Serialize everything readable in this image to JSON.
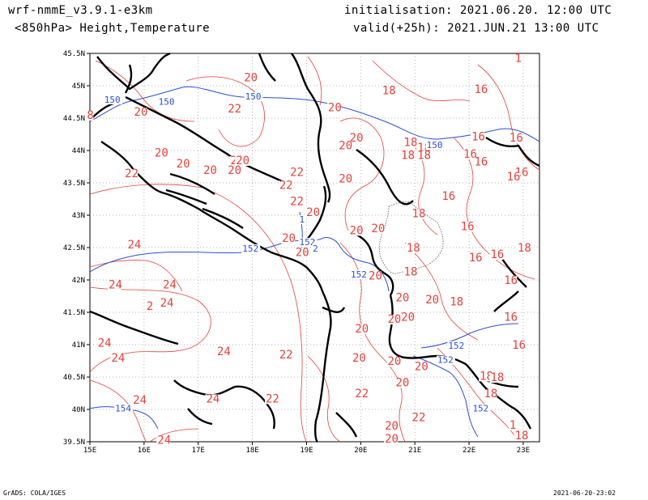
{
  "header": {
    "model": "wrf-nmmE_v3.9.1-e3km",
    "level_fields": "<850hPa> Height,Temperature",
    "init": "initialisation: 2021.06.20. 12:00 UTC",
    "valid": "valid(+25h): 2021.JUN.21 13:00 UTC"
  },
  "footer": {
    "credit": "GrADS: COLA/IGES",
    "timestamp": "2021-06-20-23:02"
  },
  "map": {
    "lon_labels": [
      "15E",
      "16E",
      "17E",
      "18E",
      "19E",
      "20E",
      "21E",
      "22E",
      "23E"
    ],
    "lat_labels": [
      "39.5N",
      "40N",
      "40.5N",
      "41N",
      "41.5N",
      "42N",
      "42.5N",
      "43N",
      "43.5N",
      "44N",
      "44.5N",
      "45N",
      "45.5N"
    ],
    "colors": {
      "temperature": "#e8403a",
      "height": "#2a4fd6",
      "coast": "#000000",
      "grid": "#9a9a9a"
    },
    "temp_labels": [
      {
        "t": "20",
        "lon": 17.95,
        "lat": 45.08
      },
      {
        "t": "18",
        "lon": 20.5,
        "lat": 44.88
      },
      {
        "t": "16",
        "lon": 22.2,
        "lat": 44.9
      },
      {
        "t": "1",
        "lon": 22.95,
        "lat": 45.38
      },
      {
        "t": "8",
        "lon": 15.05,
        "lat": 44.5
      },
      {
        "t": "20",
        "lon": 15.92,
        "lat": 44.55
      },
      {
        "t": "22",
        "lon": 17.65,
        "lat": 44.6
      },
      {
        "t": "20",
        "lon": 19.5,
        "lat": 44.62
      },
      {
        "t": "20",
        "lon": 19.9,
        "lat": 44.15
      },
      {
        "t": "20",
        "lon": 19.7,
        "lat": 44.03
      },
      {
        "t": "18",
        "lon": 20.9,
        "lat": 44.08
      },
      {
        "t": "18",
        "lon": 21.15,
        "lat": 44.0
      },
      {
        "t": "18",
        "lon": 20.85,
        "lat": 43.88
      },
      {
        "t": "18",
        "lon": 21.15,
        "lat": 43.88
      },
      {
        "t": "16",
        "lon": 22.15,
        "lat": 44.17
      },
      {
        "t": "16",
        "lon": 22.85,
        "lat": 44.15
      },
      {
        "t": "16",
        "lon": 22.0,
        "lat": 43.9
      },
      {
        "t": "16",
        "lon": 22.2,
        "lat": 43.78
      },
      {
        "t": "16",
        "lon": 22.95,
        "lat": 43.62
      },
      {
        "t": "16",
        "lon": 22.8,
        "lat": 43.55
      },
      {
        "t": "20",
        "lon": 16.3,
        "lat": 43.92
      },
      {
        "t": "20",
        "lon": 16.7,
        "lat": 43.75
      },
      {
        "t": "20",
        "lon": 17.2,
        "lat": 43.65
      },
      {
        "t": "22",
        "lon": 17.7,
        "lat": 43.8
      },
      {
        "t": "20",
        "lon": 17.8,
        "lat": 43.8
      },
      {
        "t": "20",
        "lon": 17.65,
        "lat": 43.65
      },
      {
        "t": "22",
        "lon": 15.75,
        "lat": 43.6
      },
      {
        "t": "22",
        "lon": 18.8,
        "lat": 43.62
      },
      {
        "t": "22",
        "lon": 18.6,
        "lat": 43.42
      },
      {
        "t": "20",
        "lon": 19.7,
        "lat": 43.52
      },
      {
        "t": "16",
        "lon": 21.6,
        "lat": 43.25
      },
      {
        "t": "22",
        "lon": 18.8,
        "lat": 43.17
      },
      {
        "t": "20",
        "lon": 19.1,
        "lat": 43.0
      },
      {
        "t": "18",
        "lon": 21.05,
        "lat": 42.98
      },
      {
        "t": "16",
        "lon": 21.95,
        "lat": 42.78
      },
      {
        "t": "20",
        "lon": 19.9,
        "lat": 42.72
      },
      {
        "t": "20",
        "lon": 20.3,
        "lat": 42.75
      },
      {
        "t": "20",
        "lon": 18.65,
        "lat": 42.6
      },
      {
        "t": "20",
        "lon": 18.9,
        "lat": 42.38
      },
      {
        "t": "18",
        "lon": 20.95,
        "lat": 42.45
      },
      {
        "t": "16",
        "lon": 22.1,
        "lat": 42.3
      },
      {
        "t": "16",
        "lon": 22.5,
        "lat": 42.35
      },
      {
        "t": "18",
        "lon": 23.0,
        "lat": 42.45
      },
      {
        "t": "20",
        "lon": 20.25,
        "lat": 42.02
      },
      {
        "t": "18",
        "lon": 20.9,
        "lat": 42.08
      },
      {
        "t": "16",
        "lon": 22.75,
        "lat": 41.95
      },
      {
        "t": "20",
        "lon": 20.75,
        "lat": 41.68
      },
      {
        "t": "20",
        "lon": 21.3,
        "lat": 41.65
      },
      {
        "t": "18",
        "lon": 21.75,
        "lat": 41.62
      },
      {
        "t": "20",
        "lon": 20.6,
        "lat": 41.35
      },
      {
        "t": "20",
        "lon": 20.85,
        "lat": 41.38
      },
      {
        "t": "20",
        "lon": 20.0,
        "lat": 41.2
      },
      {
        "t": "16",
        "lon": 22.75,
        "lat": 41.38
      },
      {
        "t": "16",
        "lon": 22.9,
        "lat": 40.95
      },
      {
        "t": "20",
        "lon": 19.95,
        "lat": 40.75
      },
      {
        "t": "20",
        "lon": 20.6,
        "lat": 40.7
      },
      {
        "t": "20",
        "lon": 21.1,
        "lat": 40.62
      },
      {
        "t": "18",
        "lon": 22.3,
        "lat": 40.47
      },
      {
        "t": "18",
        "lon": 22.5,
        "lat": 40.45
      },
      {
        "t": "20",
        "lon": 20.75,
        "lat": 40.37
      },
      {
        "t": "18",
        "lon": 22.38,
        "lat": 40.2
      },
      {
        "t": "22",
        "lon": 20.0,
        "lat": 40.2
      },
      {
        "t": "22",
        "lon": 21.05,
        "lat": 39.83
      },
      {
        "t": "20",
        "lon": 20.55,
        "lat": 39.7
      },
      {
        "t": "20",
        "lon": 20.55,
        "lat": 39.5
      },
      {
        "t": "1",
        "lon": 22.85,
        "lat": 39.71
      },
      {
        "t": "18",
        "lon": 22.95,
        "lat": 39.55
      },
      {
        "t": "24",
        "lon": 15.8,
        "lat": 42.5
      },
      {
        "t": "24",
        "lon": 15.45,
        "lat": 41.88
      },
      {
        "t": "24",
        "lon": 16.45,
        "lat": 41.88
      },
      {
        "t": "2",
        "lon": 16.15,
        "lat": 41.55
      },
      {
        "t": "24",
        "lon": 16.4,
        "lat": 41.6
      },
      {
        "t": "24",
        "lon": 15.25,
        "lat": 40.98
      },
      {
        "t": "24",
        "lon": 15.5,
        "lat": 40.75
      },
      {
        "t": "24",
        "lon": 17.45,
        "lat": 40.85
      },
      {
        "t": "22",
        "lon": 18.6,
        "lat": 40.8
      },
      {
        "t": "24",
        "lon": 15.9,
        "lat": 40.1
      },
      {
        "t": "24",
        "lon": 17.25,
        "lat": 40.12
      },
      {
        "t": "22",
        "lon": 18.35,
        "lat": 40.12
      },
      {
        "t": "24",
        "lon": 16.35,
        "lat": 39.48
      }
    ],
    "height_labels": [
      {
        "t": "150",
        "lon": 15.4,
        "lat": 44.75
      },
      {
        "t": "150",
        "lon": 16.4,
        "lat": 44.72
      },
      {
        "t": "150",
        "lon": 18.0,
        "lat": 44.8
      },
      {
        "t": "150",
        "lon": 21.35,
        "lat": 44.05
      },
      {
        "t": "152",
        "lon": 17.95,
        "lat": 42.45
      },
      {
        "t": "152",
        "lon": 19.0,
        "lat": 42.55
      },
      {
        "t": "152",
        "lon": 19.95,
        "lat": 42.05
      },
      {
        "t": "152",
        "lon": 21.75,
        "lat": 40.95
      },
      {
        "t": "152",
        "lon": 21.55,
        "lat": 40.73
      },
      {
        "t": "152",
        "lon": 22.2,
        "lat": 39.98
      },
      {
        "t": "154",
        "lon": 15.6,
        "lat": 39.98
      },
      {
        "t": "1",
        "lon": 19.0,
        "lat": 42.9
      },
      {
        "t": "2",
        "lon": 19.25,
        "lat": 42.45
      }
    ]
  }
}
